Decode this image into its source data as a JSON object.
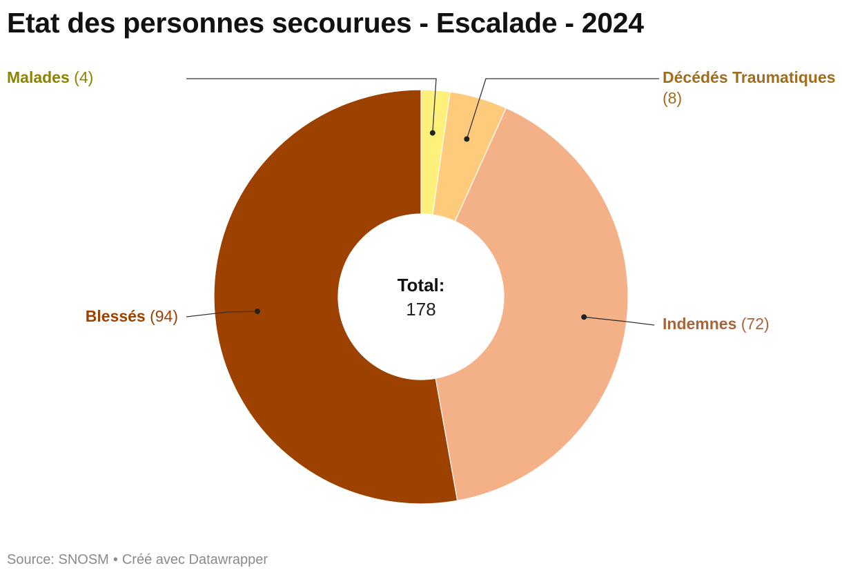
{
  "title": "Etat des personnes secourues - Escalade - 2024",
  "chart_data": {
    "type": "pie",
    "donut": true,
    "categories": [
      "Malades",
      "Décédés Traumatiques",
      "Indemnes",
      "Blessés"
    ],
    "values": [
      4,
      8,
      72,
      94
    ],
    "colors": [
      "#fdf17c",
      "#fecb7c",
      "#f4b086",
      "#9d4100"
    ],
    "label_colors": [
      "#8c8400",
      "#9e6d1f",
      "#a9653a",
      "#9d4100"
    ],
    "center_label": "Total:",
    "center_value": "178"
  },
  "footer": {
    "source": "Source: SNOSM",
    "separator": "•",
    "credit": "Créé avec Datawrapper"
  }
}
